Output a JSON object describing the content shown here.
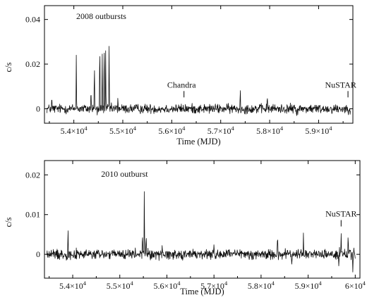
{
  "chart_data": [
    {
      "type": "line",
      "title": "",
      "xlabel": "Time (MJD)",
      "ylabel": "c/s",
      "xlim": [
        53400,
        59700
      ],
      "ylim": [
        -0.0065,
        0.0462
      ],
      "x_ticks": [
        {
          "value": 54000,
          "label": "5.4×10",
          "exp": "4"
        },
        {
          "value": 55000,
          "label": "5.5×10",
          "exp": "4"
        },
        {
          "value": 56000,
          "label": "5.6×10",
          "exp": "4"
        },
        {
          "value": 57000,
          "label": "5.7×10",
          "exp": "4"
        },
        {
          "value": 58000,
          "label": "5.8×10",
          "exp": "4"
        },
        {
          "value": 59000,
          "label": "5.9×10",
          "exp": "4"
        }
      ],
      "y_ticks": [
        {
          "value": 0,
          "label": "0"
        },
        {
          "value": 0.02,
          "label": "0.02"
        },
        {
          "value": 0.04,
          "label": "0.04"
        }
      ],
      "x_range": [
        53450,
        59650
      ],
      "noise_sigma": 0.0013,
      "spikes": [
        {
          "x": 54050,
          "y": 0.024
        },
        {
          "x": 54420,
          "y": 0.024
        },
        {
          "x": 54530,
          "y": 0.035
        },
        {
          "x": 54580,
          "y": 0.028
        },
        {
          "x": 54620,
          "y": 0.035
        },
        {
          "x": 54650,
          "y": 0.026
        },
        {
          "x": 54720,
          "y": 0.032
        },
        {
          "x": 54350,
          "y": 0.01
        },
        {
          "x": 54900,
          "y": 0.006
        },
        {
          "x": 57400,
          "y": 0.01
        },
        {
          "x": 57950,
          "y": 0.007
        },
        {
          "x": 53550,
          "y": 0.006
        },
        {
          "x": 58550,
          "y": -0.005
        },
        {
          "x": 54480,
          "y": -0.004
        }
      ],
      "annotations": [
        {
          "text": "2008 outbursts",
          "x": 54560,
          "y": 0.0402
        },
        {
          "text": "Chandra",
          "x": 56200,
          "y": 0.0095,
          "marker_x": 56250
        },
        {
          "text": "NuSTAR",
          "x": 59450,
          "y": 0.0095,
          "marker_x": 59600
        }
      ]
    },
    {
      "type": "line",
      "title": "",
      "xlabel": "Time (MJD)",
      "ylabel": "c/s",
      "xlim": [
        53400,
        60100
      ],
      "ylim": [
        -0.006,
        0.0236
      ],
      "x_ticks": [
        {
          "value": 54000,
          "label": "5.4×10",
          "exp": "4"
        },
        {
          "value": 55000,
          "label": "5.5×10",
          "exp": "4"
        },
        {
          "value": 56000,
          "label": "5.6×10",
          "exp": "4"
        },
        {
          "value": 57000,
          "label": "5.7×10",
          "exp": "4"
        },
        {
          "value": 58000,
          "label": "5.8×10",
          "exp": "4"
        },
        {
          "value": 59000,
          "label": "5.9×10",
          "exp": "4"
        },
        {
          "value": 60000,
          "label": "6×10",
          "exp": "4"
        }
      ],
      "y_ticks": [
        {
          "value": 0,
          "label": "0"
        },
        {
          "value": 0.01,
          "label": "0.01"
        },
        {
          "value": 0.02,
          "label": "0.02"
        }
      ],
      "x_range": [
        53450,
        60000
      ],
      "noise_sigma": 0.0008,
      "spikes": [
        {
          "x": 55520,
          "y": 0.0175
        },
        {
          "x": 55480,
          "y": 0.006
        },
        {
          "x": 55560,
          "y": 0.006
        },
        {
          "x": 53900,
          "y": 0.0075
        },
        {
          "x": 55900,
          "y": 0.003
        },
        {
          "x": 57000,
          "y": 0.003
        },
        {
          "x": 58350,
          "y": 0.006
        },
        {
          "x": 58900,
          "y": 0.0055
        },
        {
          "x": 59700,
          "y": 0.006
        },
        {
          "x": 59850,
          "y": 0.0055
        },
        {
          "x": 59950,
          "y": -0.005
        },
        {
          "x": 59650,
          "y": -0.003
        },
        {
          "x": 58650,
          "y": -0.003
        }
      ],
      "annotations": [
        {
          "text": "2010 outburst",
          "x": 55100,
          "y": 0.0195
        },
        {
          "text": "NuSTAR",
          "x": 59700,
          "y": 0.0095,
          "marker_x": 59700
        }
      ]
    }
  ]
}
